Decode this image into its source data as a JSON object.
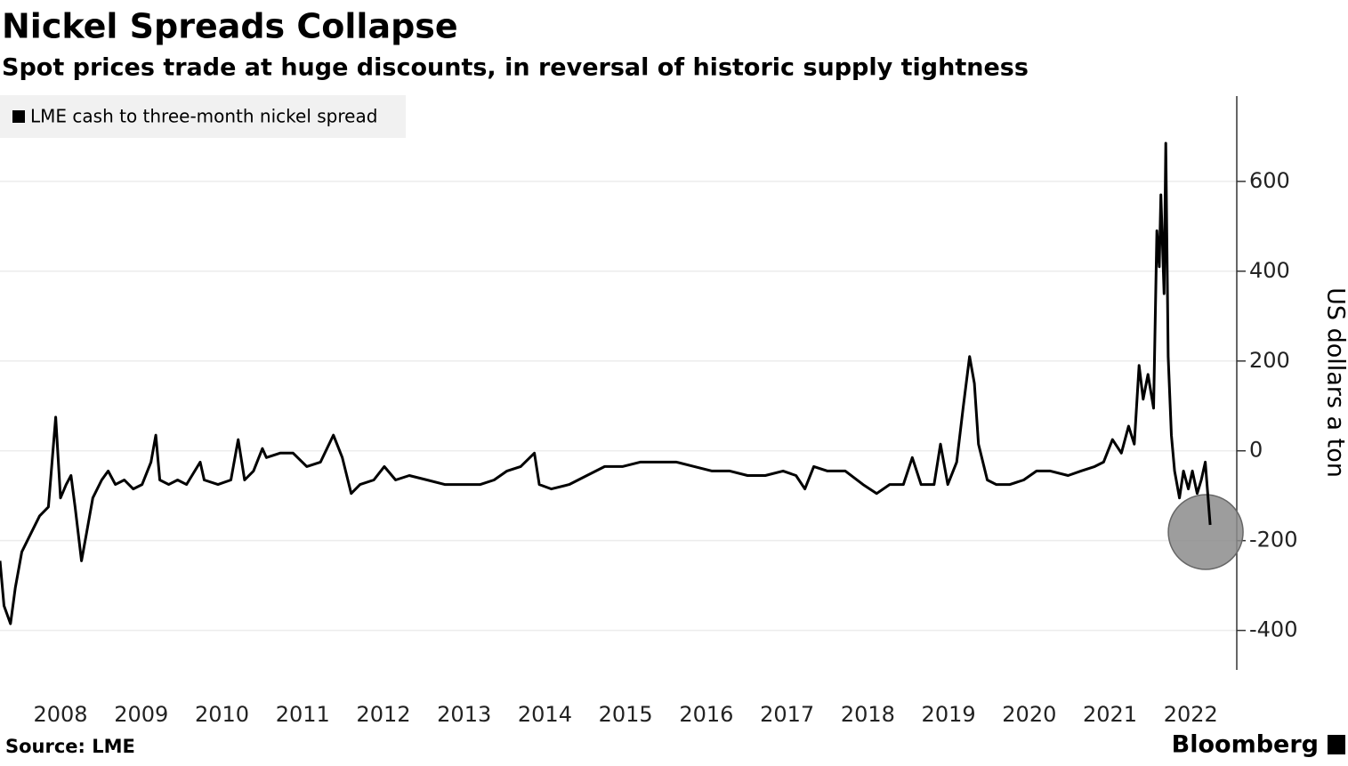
{
  "chart_data": {
    "type": "line",
    "title": "Nickel Spreads Collapse",
    "subtitle": "Spot prices trade at huge discounts, in reversal of historic supply tightness",
    "y_label": "US dollars a ton",
    "source": "Source: LME",
    "brand": "Bloomberg",
    "x": [
      2007.75,
      2007.8,
      2007.88,
      2007.94,
      2008.02,
      2008.13,
      2008.24,
      2008.35,
      2008.44,
      2008.5,
      2008.57,
      2008.63,
      2008.68,
      2008.76,
      2008.82,
      2008.9,
      2009.01,
      2009.09,
      2009.18,
      2009.29,
      2009.4,
      2009.51,
      2009.62,
      2009.68,
      2009.73,
      2009.84,
      2009.95,
      2010.06,
      2010.23,
      2010.28,
      2010.45,
      2010.61,
      2010.7,
      2010.78,
      2010.89,
      2011.0,
      2011.05,
      2011.22,
      2011.38,
      2011.55,
      2011.72,
      2011.88,
      2011.99,
      2012.1,
      2012.21,
      2012.38,
      2012.51,
      2012.65,
      2012.82,
      2013.04,
      2013.26,
      2013.48,
      2013.7,
      2013.87,
      2014.03,
      2014.2,
      2014.37,
      2014.43,
      2014.58,
      2014.8,
      2015.02,
      2015.24,
      2015.46,
      2015.68,
      2015.85,
      2016.13,
      2016.35,
      2016.57,
      2016.79,
      2017.01,
      2017.23,
      2017.45,
      2017.61,
      2017.72,
      2017.83,
      2018.0,
      2018.22,
      2018.44,
      2018.61,
      2018.77,
      2018.94,
      2019.05,
      2019.16,
      2019.32,
      2019.4,
      2019.49,
      2019.6,
      2019.68,
      2019.76,
      2019.82,
      2019.87,
      2019.98,
      2020.09,
      2020.26,
      2020.43,
      2020.59,
      2020.76,
      2020.98,
      2021.14,
      2021.31,
      2021.42,
      2021.53,
      2021.64,
      2021.73,
      2021.8,
      2021.86,
      2021.91,
      2021.97,
      2022.04,
      2022.08,
      2022.11,
      2022.13,
      2022.17,
      2022.19,
      2022.22,
      2022.26,
      2022.3,
      2022.36,
      2022.41,
      2022.47,
      2022.52,
      2022.58,
      2022.63,
      2022.68,
      2022.74
    ],
    "series": [
      {
        "name": "LME cash to three-month nickel spread",
        "color": "#000000",
        "values": [
          -245,
          -345,
          -385,
          -305,
          -225,
          -185,
          -145,
          -125,
          75,
          -105,
          -75,
          -55,
          -125,
          -245,
          -185,
          -105,
          -65,
          -45,
          -75,
          -65,
          -85,
          -75,
          -25,
          35,
          -65,
          -75,
          -65,
          -75,
          -25,
          -65,
          -75,
          -65,
          25,
          -65,
          -45,
          5,
          -15,
          -5,
          -5,
          -35,
          -25,
          35,
          -15,
          -95,
          -75,
          -65,
          -35,
          -65,
          -55,
          -65,
          -75,
          -75,
          -75,
          -65,
          -45,
          -35,
          -5,
          -75,
          -85,
          -75,
          -55,
          -35,
          -35,
          -25,
          -25,
          -25,
          -35,
          -45,
          -45,
          -55,
          -55,
          -45,
          -55,
          -85,
          -35,
          -45,
          -45,
          -75,
          -95,
          -75,
          -75,
          -15,
          -75,
          -75,
          15,
          -75,
          -25,
          95,
          210,
          150,
          15,
          -65,
          -75,
          -75,
          -65,
          -45,
          -45,
          -55,
          -45,
          -35,
          -25,
          25,
          -5,
          55,
          15,
          190,
          115,
          170,
          95,
          490,
          410,
          570,
          350,
          685,
          210,
          35,
          -45,
          -105,
          -45,
          -85,
          -45,
          -95,
          -65,
          -25,
          -165
        ]
      }
    ],
    "xlim": [
      2007.75,
      2023.07
    ],
    "xticks": [
      {
        "value": 2008.5,
        "label": "2008"
      },
      {
        "value": 2009.5,
        "label": "2009"
      },
      {
        "value": 2010.5,
        "label": "2010"
      },
      {
        "value": 2011.5,
        "label": "2011"
      },
      {
        "value": 2012.5,
        "label": "2012"
      },
      {
        "value": 2013.5,
        "label": "2013"
      },
      {
        "value": 2014.5,
        "label": "2014"
      },
      {
        "value": 2015.5,
        "label": "2015"
      },
      {
        "value": 2016.5,
        "label": "2016"
      },
      {
        "value": 2017.5,
        "label": "2017"
      },
      {
        "value": 2018.5,
        "label": "2018"
      },
      {
        "value": 2019.5,
        "label": "2019"
      },
      {
        "value": 2020.5,
        "label": "2020"
      },
      {
        "value": 2021.5,
        "label": "2021"
      },
      {
        "value": 2022.5,
        "label": "2022"
      }
    ],
    "ylim": [
      -480,
      790
    ],
    "yticks": [
      -400,
      -200,
      0,
      200,
      400,
      600
    ],
    "grid": true,
    "y_axis_side": "right"
  }
}
